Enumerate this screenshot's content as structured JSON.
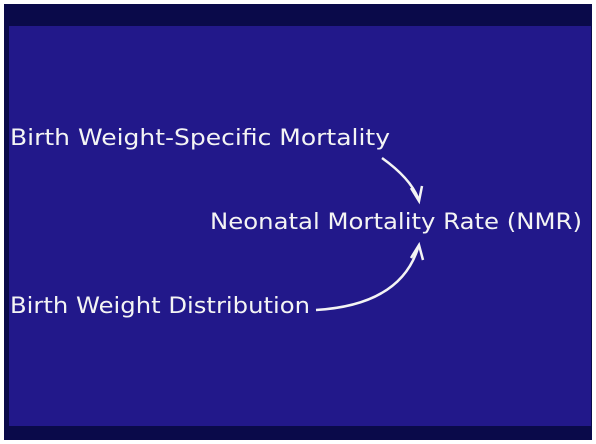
{
  "nodes": [
    {
      "label": "Birth Weight-Specific Mortality"
    },
    {
      "label": "Neonatal Mortality Rate (NMR)"
    },
    {
      "label": "Birth Weight Distribution"
    }
  ]
}
